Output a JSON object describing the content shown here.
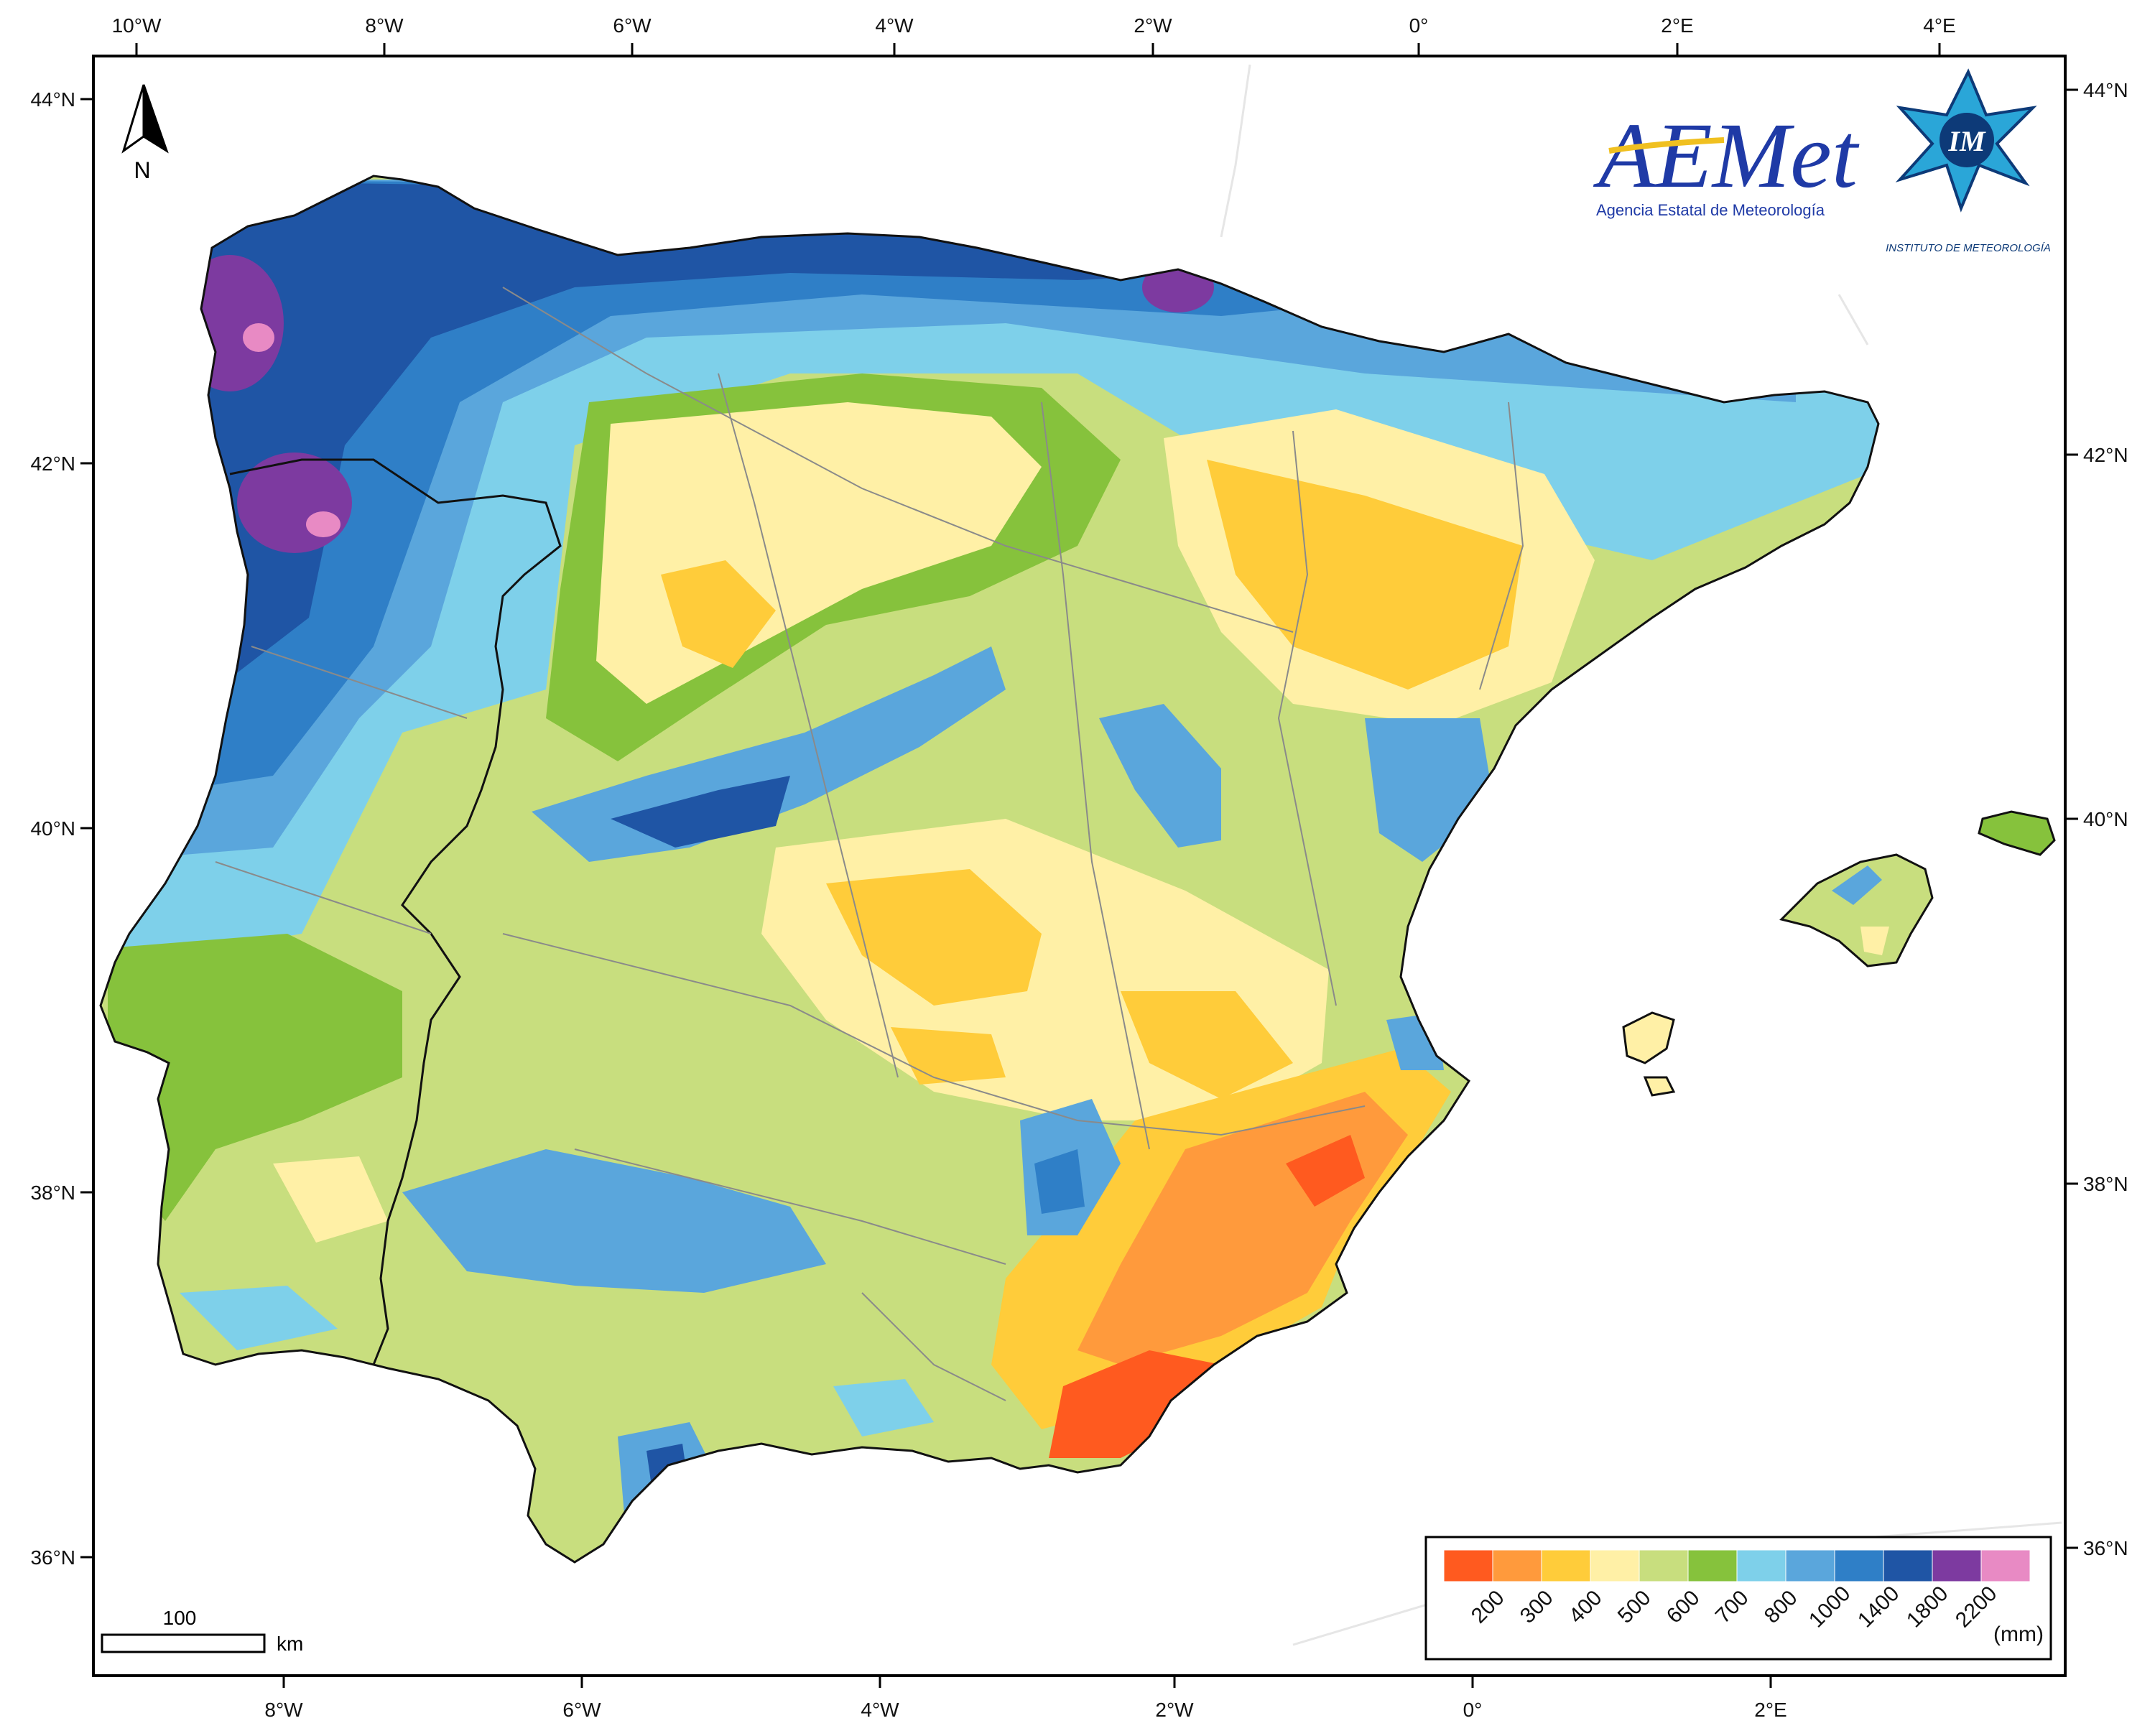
{
  "map": {
    "top_axis_labels": [
      "10°W",
      "8°W",
      "6°W",
      "4°W",
      "2°W",
      "0°",
      "2°E",
      "4°E"
    ],
    "bottom_axis_labels": [
      "8°W",
      "6°W",
      "4°W",
      "2°W",
      "0°",
      "2°E"
    ],
    "left_axis_labels": [
      "44°N",
      "42°N",
      "40°N",
      "38°N",
      "36°N"
    ],
    "right_axis_labels": [
      "44°N",
      "42°N",
      "40°N",
      "38°N",
      "36°N"
    ],
    "north_arrow_label": "N",
    "scale_bar": {
      "value_label": "100",
      "unit_label": "km"
    }
  },
  "logos": {
    "aemet_wordmark": "AEMet",
    "aemet_subtitle": "Agencia Estatal de Meteorología",
    "im_mark": "IM",
    "im_caption": "INSTITUTO DE METEOROLOGÍA"
  },
  "legend": {
    "classes": [
      {
        "label": "",
        "color": "#ff5a1f"
      },
      {
        "label": "200",
        "color": "#ff9a3c"
      },
      {
        "label": "300",
        "color": "#ffcc3a"
      },
      {
        "label": "400",
        "color": "#fff0a6"
      },
      {
        "label": "500",
        "color": "#c8de7e"
      },
      {
        "label": "600",
        "color": "#86c23c"
      },
      {
        "label": "700",
        "color": "#7ed0ea"
      },
      {
        "label": "800",
        "color": "#5aa6dc"
      },
      {
        "label": "1000",
        "color": "#2f7fc7"
      },
      {
        "label": "1400",
        "color": "#1f55a5"
      },
      {
        "label": "1800",
        "color": "#7d3aa0"
      },
      {
        "label": "2200",
        "color": "#e88ac4"
      }
    ],
    "unit": "(mm)"
  }
}
